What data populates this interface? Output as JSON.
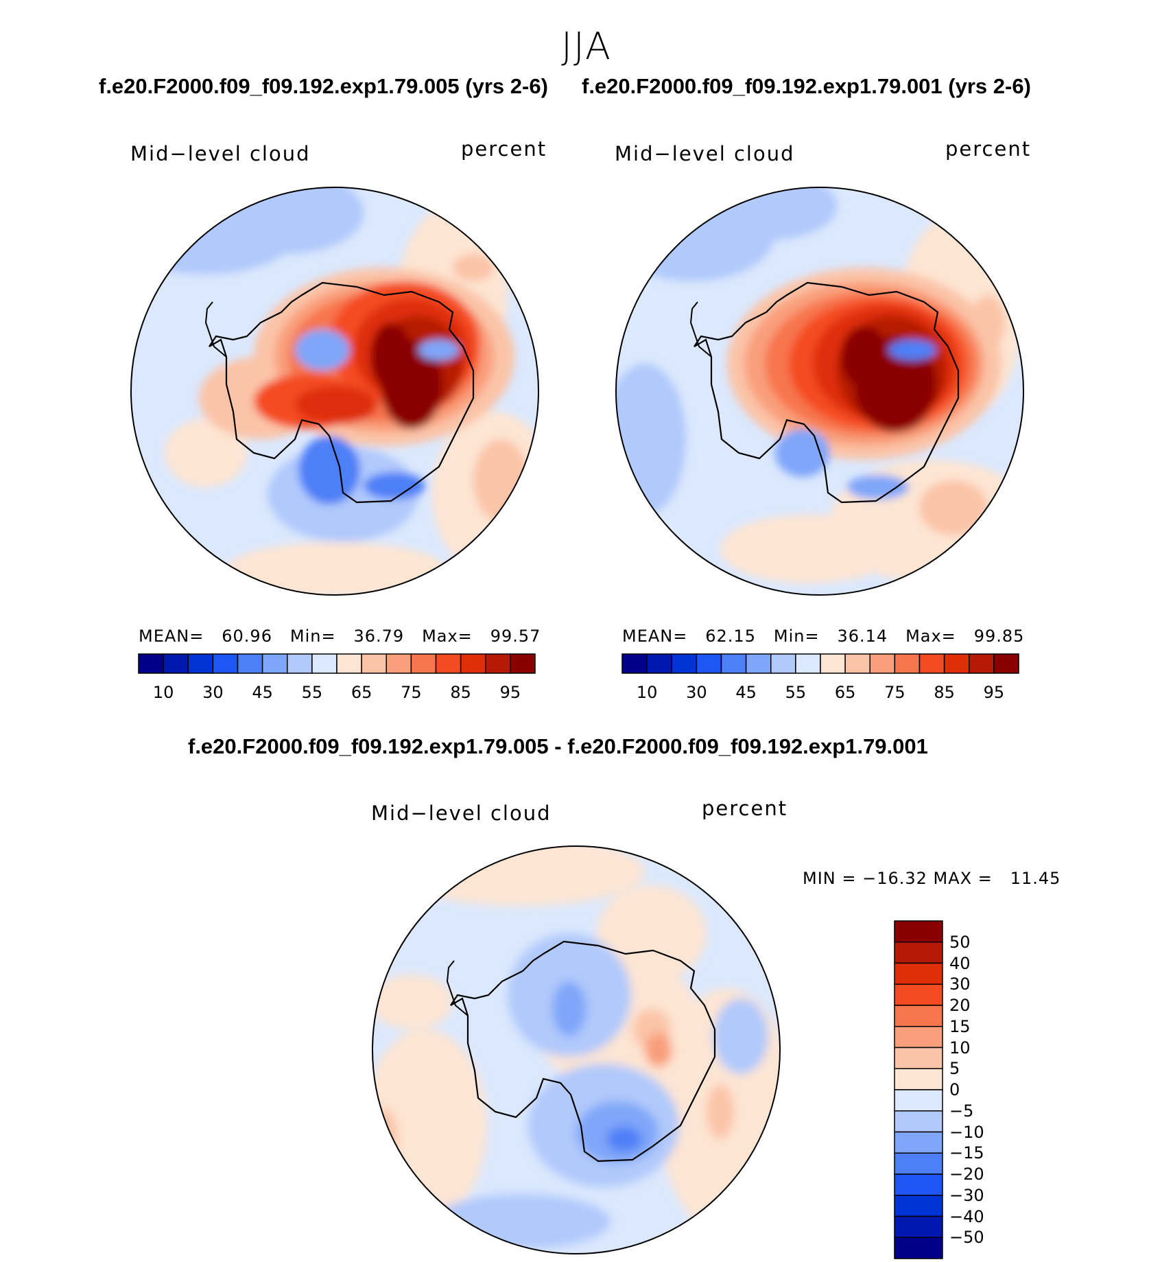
{
  "figure": {
    "season": "JJA",
    "top_header_left": "f.e20.F2000.f09_f09.192.exp1.79.005 (yrs 2-6)",
    "top_header_right": "f.e20.F2000.f09_f09.192.exp1.79.001 (yrs 2-6)",
    "diff_header": "f.e20.F2000.f09_f09.192.exp1.79.005 - f.e20.F2000.f09_f09.192.exp1.79.001"
  },
  "panels": [
    {
      "variable": "Mid−level cloud",
      "units": "percent",
      "stats": {
        "mean_label": "MEAN=",
        "mean": "60.96",
        "min_label": "Min=",
        "min": "36.79",
        "max_label": "Max=",
        "max": "99.57"
      }
    },
    {
      "variable": "Mid−level cloud",
      "units": "percent",
      "stats": {
        "mean_label": "MEAN=",
        "mean": "62.15",
        "min_label": "Min=",
        "min": "36.14",
        "max_label": "Max=",
        "max": "99.85"
      }
    }
  ],
  "diff_panel": {
    "variable": "Mid−level cloud",
    "units": "percent",
    "minmax": "MIN = −16.32 MAX =   11.45"
  },
  "colorbar_abs": {
    "colors": [
      "#00008a",
      "#0017b0",
      "#0033d6",
      "#1e55f5",
      "#4d7ff7",
      "#7fa6f9",
      "#b1c9fb",
      "#dbe8fd",
      "#fde5d3",
      "#fbc4a8",
      "#f99f7b",
      "#f7764e",
      "#f44c22",
      "#df2f08",
      "#b61a06",
      "#8a0000"
    ],
    "labels": [
      "10",
      "30",
      "45",
      "55",
      "65",
      "75",
      "85",
      "95"
    ]
  },
  "colorbar_diff": {
    "colors_top_to_bottom": [
      "#8a0000",
      "#b61a06",
      "#df2f08",
      "#f44c22",
      "#f7764e",
      "#f99f7b",
      "#fbc4a8",
      "#fde5d3",
      "#dbe8fd",
      "#b1c9fb",
      "#7fa6f9",
      "#4d7ff7",
      "#1e55f5",
      "#0033d6",
      "#0017b0",
      "#00008a"
    ],
    "labels": [
      "50",
      "40",
      "30",
      "20",
      "15",
      "10",
      "5",
      "0",
      "−5",
      "−10",
      "−15",
      "−20",
      "−30",
      "−40",
      "−50"
    ]
  }
}
